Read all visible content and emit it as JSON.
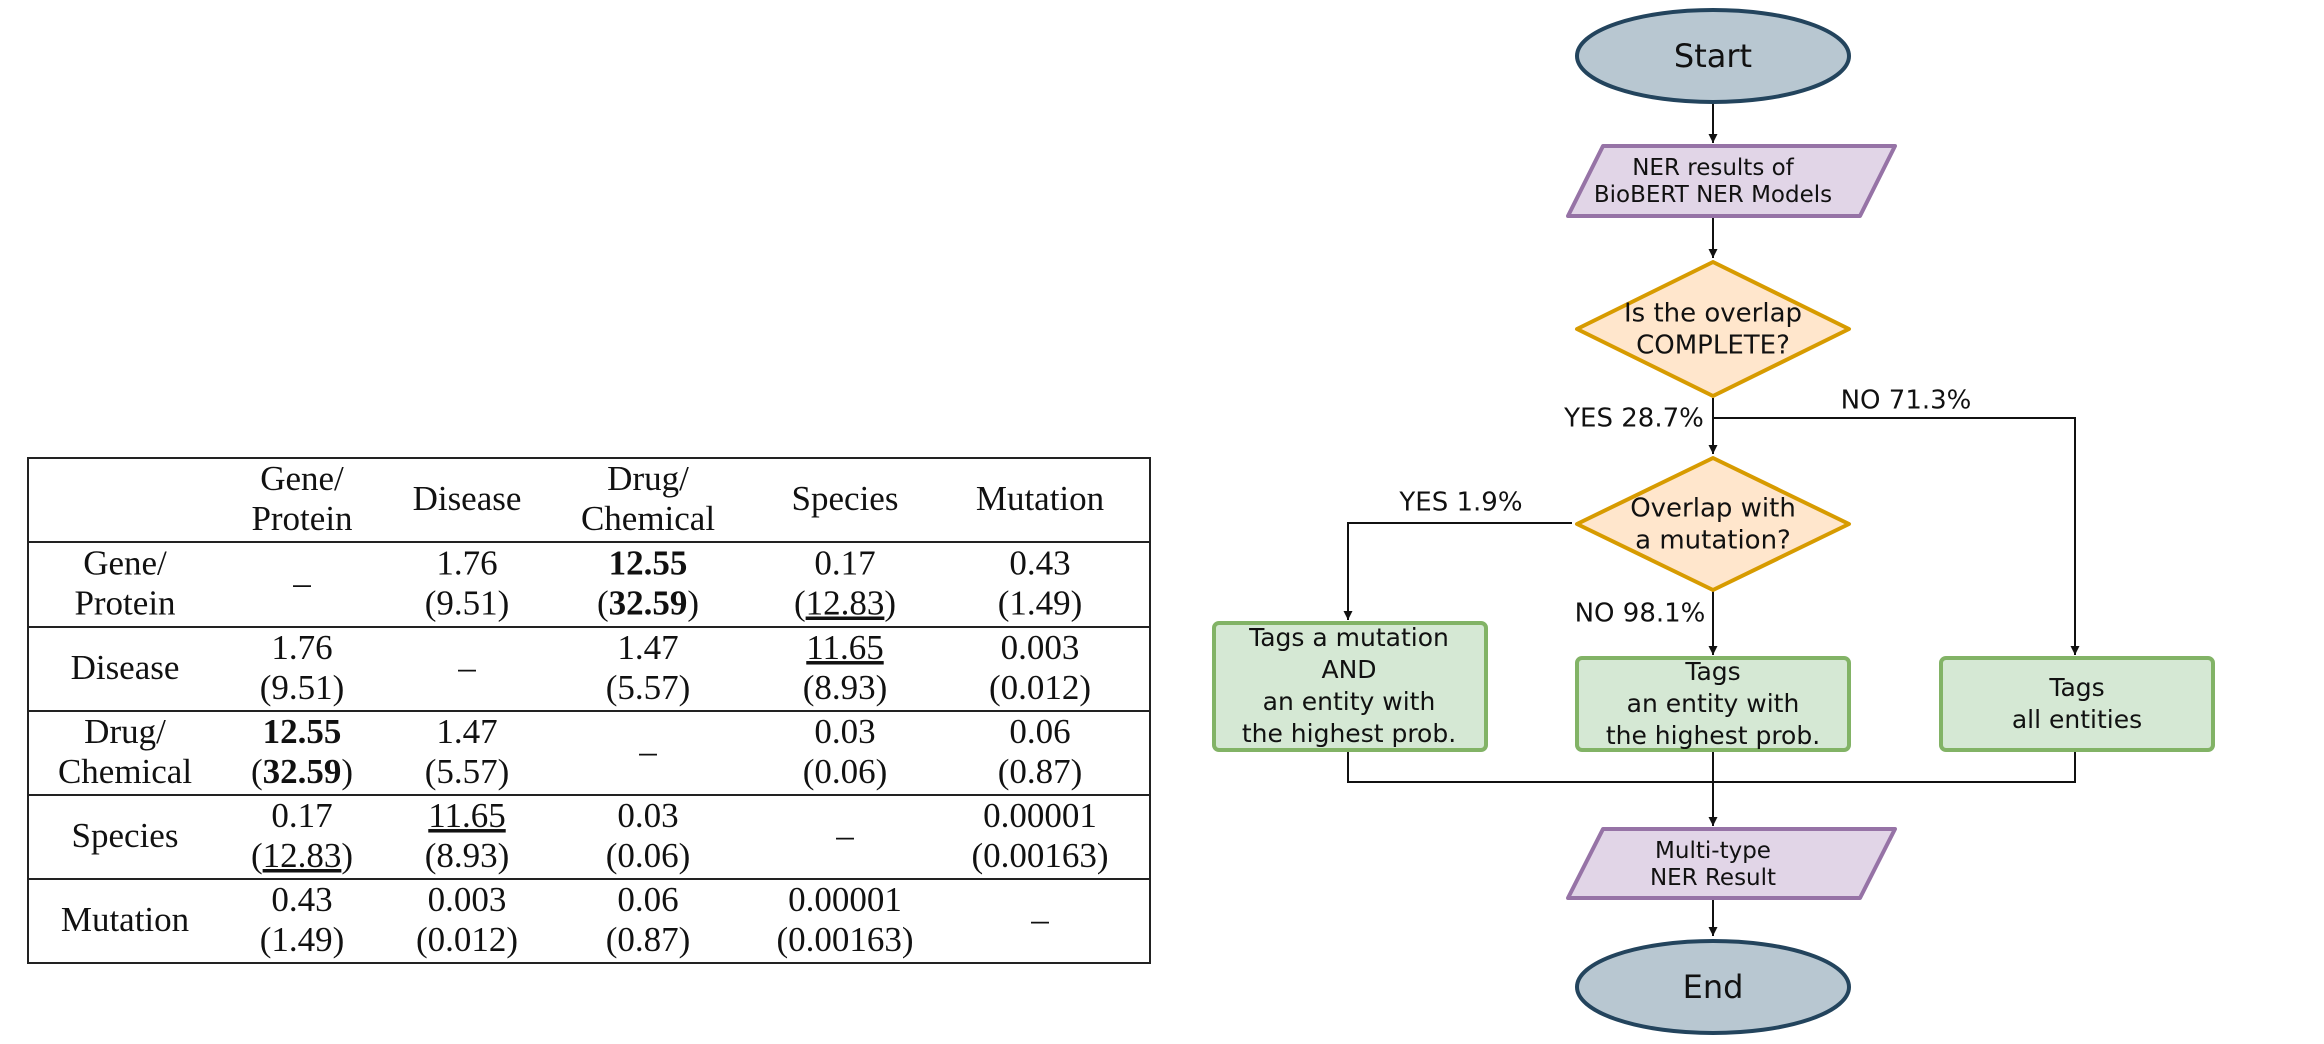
{
  "table": {
    "columns": [
      "Gene/Protein",
      "Disease",
      "Drug/Chemical",
      "Species",
      "Mutation"
    ],
    "column_headers": [
      [
        "Gene/",
        "Protein"
      ],
      [
        "Disease"
      ],
      [
        "Drug/",
        "Chemical"
      ],
      [
        "Species"
      ],
      [
        "Mutation"
      ]
    ],
    "rows": [
      {
        "header": [
          "Gene/",
          "Protein"
        ],
        "cells": [
          {
            "value": "–",
            "paren": null
          },
          {
            "value": "1.76",
            "paren": "9.51"
          },
          {
            "value": "12.55",
            "paren": "32.59",
            "bold": true
          },
          {
            "value": "0.17",
            "paren": "12.83",
            "underline_paren": true
          },
          {
            "value": "0.43",
            "paren": "1.49"
          }
        ]
      },
      {
        "header": [
          "Disease"
        ],
        "cells": [
          {
            "value": "1.76",
            "paren": "9.51"
          },
          {
            "value": "–",
            "paren": null
          },
          {
            "value": "1.47",
            "paren": "5.57"
          },
          {
            "value": "11.65",
            "paren": "8.93",
            "underline_value": true
          },
          {
            "value": "0.003",
            "paren": "0.012"
          }
        ]
      },
      {
        "header": [
          "Drug/",
          "Chemical"
        ],
        "cells": [
          {
            "value": "12.55",
            "paren": "32.59",
            "bold": true
          },
          {
            "value": "1.47",
            "paren": "5.57"
          },
          {
            "value": "–",
            "paren": null
          },
          {
            "value": "0.03",
            "paren": "0.06"
          },
          {
            "value": "0.06",
            "paren": "0.87"
          }
        ]
      },
      {
        "header": [
          "Species"
        ],
        "cells": [
          {
            "value": "0.17",
            "paren": "12.83",
            "underline_paren": true
          },
          {
            "value": "11.65",
            "paren": "8.93",
            "underline_value": true
          },
          {
            "value": "0.03",
            "paren": "0.06"
          },
          {
            "value": "–",
            "paren": null
          },
          {
            "value": "0.00001",
            "paren": "0.00163"
          }
        ]
      },
      {
        "header": [
          "Mutation"
        ],
        "cells": [
          {
            "value": "0.43",
            "paren": "1.49"
          },
          {
            "value": "0.003",
            "paren": "0.012"
          },
          {
            "value": "0.06",
            "paren": "0.87"
          },
          {
            "value": "0.00001",
            "paren": "0.00163"
          },
          {
            "value": "–",
            "paren": null
          }
        ]
      }
    ]
  },
  "flowchart": {
    "start": "Start",
    "input": [
      "NER results of",
      "BioBERT NER Models"
    ],
    "decision1": [
      "Is the overlap",
      "COMPLETE?"
    ],
    "decision1_yes": "YES 28.7%",
    "decision1_no": "NO 71.3%",
    "decision2": [
      "Overlap with",
      "a mutation?"
    ],
    "decision2_yes": "YES 1.9%",
    "decision2_no": "NO 98.1%",
    "box_left": [
      "Tags a mutation",
      "AND",
      "an entity with",
      "the highest prob."
    ],
    "box_center": [
      "Tags",
      "an entity with",
      "the highest prob."
    ],
    "box_right": [
      "Tags",
      "all entities"
    ],
    "output": [
      "Multi-type",
      "NER Result"
    ],
    "end": "End",
    "colors": {
      "terminal_fill": "#b8c7d1",
      "terminal_stroke": "#23445d",
      "io_fill": "#e1d5e7",
      "io_stroke": "#9673a6",
      "decision_fill": "#ffe6cc",
      "decision_stroke": "#d79b00",
      "process_fill": "#d5e8d4",
      "process_stroke": "#82b366"
    }
  }
}
